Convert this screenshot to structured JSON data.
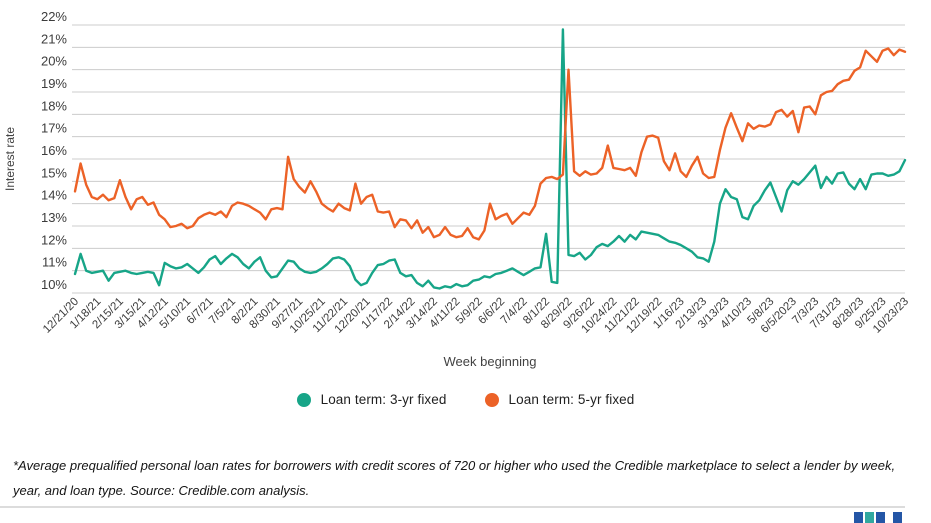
{
  "chart_data": {
    "type": "line",
    "title": "",
    "xlabel": "Week beginning",
    "ylabel": "Interest rate",
    "ylim": [
      10,
      22
    ],
    "grid": true,
    "legend_position": "bottom",
    "y_tick_labels": [
      "22%",
      "21%",
      "20%",
      "19%",
      "18%",
      "17%",
      "16%",
      "15%",
      "14%",
      "13%",
      "12%",
      "11%",
      "10%"
    ],
    "x_tick_labels": [
      "12/21/20",
      "1/18/21",
      "2/15/21",
      "3/15/21",
      "4/12/21",
      "5/10/21",
      "6/7/21",
      "7/5/21",
      "8/2/21",
      "8/30/21",
      "9/27/21",
      "10/25/21",
      "11/22/21",
      "12/20/21",
      "1/17/22",
      "2/14/22",
      "3/14/22",
      "4/11/22",
      "5/9/22",
      "6/6/22",
      "7/4/22",
      "8/1/22",
      "8/29/22",
      "9/26/22",
      "10/24/22",
      "11/21/22",
      "12/19/22",
      "1/16/23",
      "2/13/23",
      "3/13/23",
      "4/10/23",
      "5/8/23",
      "6/5/2023",
      "7/3/23",
      "7/31/23",
      "8/28/23",
      "9/25/23",
      "10/23/23"
    ],
    "x_note": "weekly data points; tick labels mark every 4th week",
    "series": [
      {
        "name": "Loan term: 3-yr fixed",
        "color": "#17A588",
        "values": [
          10.85,
          11.75,
          11.0,
          10.9,
          10.95,
          11.0,
          10.55,
          10.9,
          10.95,
          11.0,
          10.9,
          10.85,
          10.9,
          10.95,
          10.9,
          10.35,
          11.35,
          11.2,
          11.1,
          11.15,
          11.3,
          11.1,
          10.9,
          11.15,
          11.5,
          11.65,
          11.3,
          11.55,
          11.75,
          11.6,
          11.3,
          11.1,
          11.4,
          11.6,
          11.0,
          10.7,
          10.75,
          11.1,
          11.45,
          11.4,
          11.1,
          10.95,
          10.9,
          10.95,
          11.1,
          11.3,
          11.55,
          11.6,
          11.5,
          11.2,
          10.6,
          10.35,
          10.45,
          10.9,
          11.25,
          11.3,
          11.45,
          11.5,
          10.9,
          10.75,
          10.8,
          10.45,
          10.3,
          10.55,
          10.25,
          10.2,
          10.3,
          10.25,
          10.4,
          10.3,
          10.35,
          10.55,
          10.6,
          10.75,
          10.7,
          10.85,
          10.9,
          11.0,
          11.1,
          10.95,
          10.8,
          10.95,
          11.1,
          11.15,
          12.65,
          10.5,
          10.45,
          21.8,
          11.7,
          11.65,
          11.8,
          11.5,
          11.7,
          12.05,
          12.2,
          12.1,
          12.3,
          12.55,
          12.3,
          12.6,
          12.4,
          12.75,
          12.7,
          12.65,
          12.6,
          12.45,
          12.3,
          12.25,
          12.15,
          12.0,
          11.85,
          11.6,
          11.55,
          11.4,
          12.3,
          14.0,
          14.65,
          14.3,
          14.2,
          13.4,
          13.3,
          13.9,
          14.15,
          14.6,
          14.95,
          14.3,
          13.65,
          14.6,
          15.0,
          14.85,
          15.1,
          15.4,
          15.7,
          14.7,
          15.2,
          14.9,
          15.35,
          15.4,
          14.9,
          14.65,
          15.1,
          14.65,
          15.3,
          15.35,
          15.35,
          15.25,
          15.3,
          15.45,
          15.95
        ]
      },
      {
        "name": "Loan term: 5-yr fixed",
        "color": "#EC6227",
        "values": [
          14.55,
          15.8,
          14.85,
          14.3,
          14.2,
          14.4,
          14.15,
          14.25,
          15.05,
          14.3,
          13.75,
          14.2,
          14.3,
          13.95,
          14.05,
          13.5,
          13.3,
          12.95,
          13.0,
          13.1,
          12.9,
          13.0,
          13.35,
          13.5,
          13.6,
          13.5,
          13.65,
          13.4,
          13.9,
          14.05,
          14.0,
          13.9,
          13.75,
          13.6,
          13.3,
          13.75,
          13.8,
          13.75,
          16.1,
          15.1,
          14.75,
          14.5,
          15.0,
          14.55,
          14.0,
          13.8,
          13.65,
          14.0,
          13.8,
          13.7,
          14.9,
          14.0,
          14.3,
          14.4,
          13.65,
          13.6,
          13.65,
          12.95,
          13.3,
          13.25,
          12.9,
          13.25,
          12.7,
          12.95,
          12.5,
          12.6,
          12.95,
          12.6,
          12.5,
          12.55,
          12.9,
          12.5,
          12.4,
          12.8,
          14.0,
          13.3,
          13.45,
          13.55,
          13.1,
          13.35,
          13.6,
          13.5,
          13.9,
          14.9,
          15.15,
          15.2,
          15.1,
          15.3,
          20.0,
          15.45,
          15.25,
          15.45,
          15.3,
          15.35,
          15.6,
          16.6,
          15.6,
          15.55,
          15.5,
          15.6,
          15.25,
          16.3,
          17.0,
          17.05,
          16.95,
          15.9,
          15.5,
          16.25,
          15.45,
          15.2,
          15.7,
          16.1,
          15.35,
          15.15,
          15.2,
          16.4,
          17.4,
          18.05,
          17.4,
          16.8,
          17.6,
          17.35,
          17.5,
          17.45,
          17.55,
          18.1,
          18.2,
          17.9,
          18.15,
          17.2,
          18.3,
          18.35,
          18.0,
          18.85,
          19.0,
          19.05,
          19.35,
          19.5,
          19.55,
          19.95,
          20.1,
          20.85,
          20.6,
          20.35,
          20.85,
          20.95,
          20.65,
          20.9,
          20.8
        ]
      }
    ]
  },
  "footnote": {
    "text": "*Average prequalified personal loan rates for borrowers with credit scores of 720 or higher who used the Credible marketplace to select a lender by week, year, and loan type. Source: Credible.com analysis."
  },
  "footer": {
    "logo_bar_colors": [
      "#2456A6",
      "#31A89F",
      "#2456A6",
      "#2456A6"
    ],
    "rule_color": "#dcdcdc"
  },
  "style": {
    "gridline_color": "#cccccc",
    "axis_text_color": "#3c3c3c",
    "axis_title_color": "#424242"
  }
}
